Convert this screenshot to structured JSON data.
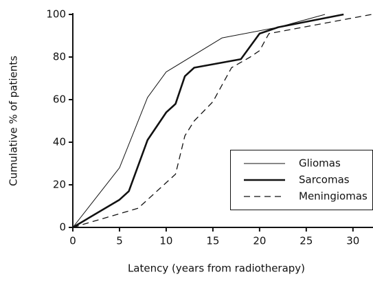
{
  "chart_data": {
    "type": "line",
    "x_label": "Latency (years from radiotherapy)",
    "y_label": "Cumulative % of patients",
    "xlim": [
      0,
      32
    ],
    "ylim": [
      0,
      100
    ],
    "xticks": [
      0,
      5,
      10,
      15,
      20,
      25,
      30
    ],
    "yticks": [
      0,
      20,
      40,
      60,
      80,
      100
    ],
    "grid": false,
    "legend": "lower right",
    "series": [
      {
        "name": "Gliomas",
        "color": "#111111",
        "linewidth": 1,
        "linestyle": "solid",
        "x": [
          0,
          5,
          8,
          10,
          16,
          22,
          27
        ],
        "values": [
          0,
          28,
          61,
          73,
          89,
          94,
          100
        ]
      },
      {
        "name": "Sarcomas",
        "color": "#111111",
        "linewidth": 2.6,
        "linestyle": "solid",
        "x": [
          0,
          5,
          6,
          8,
          10,
          11,
          12,
          13,
          18,
          20,
          22,
          29
        ],
        "values": [
          0,
          13,
          17,
          41,
          54,
          58,
          71,
          75,
          79,
          91,
          94,
          100
        ]
      },
      {
        "name": "Meningiomas",
        "color": "#111111",
        "linewidth": 1.3,
        "linestyle": "dashed",
        "x": [
          0,
          7,
          10,
          11,
          12,
          13,
          15,
          17,
          19,
          20,
          21,
          32
        ],
        "values": [
          0,
          9,
          21,
          25,
          43,
          50,
          59,
          75,
          80,
          83,
          91,
          100
        ]
      }
    ]
  }
}
